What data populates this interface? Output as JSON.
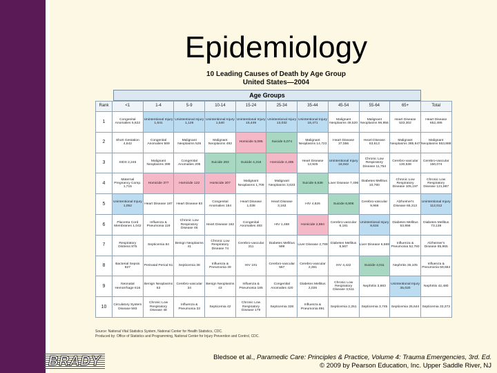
{
  "slide_title": "Epidemiology",
  "table_title_line1": "10 Leading Causes of Death by Age Group",
  "table_title_line2": "United States—2004",
  "age_groups_label": "Age Groups",
  "columns": [
    "Rank",
    "<1",
    "1-4",
    "5-9",
    "10-14",
    "15-24",
    "25-34",
    "35-44",
    "45-54",
    "55-64",
    "65+",
    "Total"
  ],
  "rows": [
    {
      "rank": "1",
      "cells": [
        {
          "text": "Congenital Anomalies 5,622",
          "color": ""
        },
        {
          "text": "Unintentional Injury 1,641",
          "color": "blue"
        },
        {
          "text": "Unintentional Injury 1,126",
          "color": "blue"
        },
        {
          "text": "Unintentional Injury 1,540",
          "color": "blue"
        },
        {
          "text": "Unintentional Injury 15,449",
          "color": "blue"
        },
        {
          "text": "Unintentional Injury 13,032",
          "color": "blue"
        },
        {
          "text": "Unintentional Injury 16,471",
          "color": "blue"
        },
        {
          "text": "Malignant Neoplasms 49,520",
          "color": ""
        },
        {
          "text": "Malignant Neoplasms 96,956",
          "color": ""
        },
        {
          "text": "Heart Disease 533,302",
          "color": ""
        },
        {
          "text": "Heart Disease 652,486",
          "color": ""
        }
      ]
    },
    {
      "rank": "2",
      "cells": [
        {
          "text": "Short Gestation 4,642",
          "color": ""
        },
        {
          "text": "Congenital Anomalies 569",
          "color": ""
        },
        {
          "text": "Malignant Neoplasms 526",
          "color": ""
        },
        {
          "text": "Malignant Neoplasms 493",
          "color": ""
        },
        {
          "text": "Homicide 5,085",
          "color": "pink"
        },
        {
          "text": "Suicide 5,074",
          "color": "green"
        },
        {
          "text": "Malignant Neoplasms 14,723",
          "color": ""
        },
        {
          "text": "Heart Disease 37,556",
          "color": ""
        },
        {
          "text": "Heart Disease 63,613",
          "color": ""
        },
        {
          "text": "Malignant Neoplasms 385,847",
          "color": ""
        },
        {
          "text": "Malignant Neoplasms 553,888",
          "color": ""
        }
      ]
    },
    {
      "rank": "3",
      "cells": [
        {
          "text": "SIDS 2,246",
          "color": ""
        },
        {
          "text": "Malignant Neoplasms 399",
          "color": ""
        },
        {
          "text": "Congenital Anomalies 205",
          "color": ""
        },
        {
          "text": "Suicide 283",
          "color": "green"
        },
        {
          "text": "Suicide 4,316",
          "color": "green"
        },
        {
          "text": "Homicide 4,495",
          "color": "pink"
        },
        {
          "text": "Heart Disease 12,925",
          "color": ""
        },
        {
          "text": "Unintentional Injury 16,942",
          "color": "blue"
        },
        {
          "text": "Chronic Low Respiratory Disease 11,754",
          "color": ""
        },
        {
          "text": "Cerebro-vascular 130,538",
          "color": ""
        },
        {
          "text": "Cerebro-vascular 150,074",
          "color": ""
        }
      ]
    },
    {
      "rank": "4",
      "cells": [
        {
          "text": "Maternal Pregnancy Comp. 1,715",
          "color": ""
        },
        {
          "text": "Homicide 377",
          "color": "pink"
        },
        {
          "text": "Homicide 122",
          "color": "pink"
        },
        {
          "text": "Homicide 207",
          "color": "pink"
        },
        {
          "text": "Malignant Neoplasms 1,709",
          "color": ""
        },
        {
          "text": "Malignant Neoplasms 3,633",
          "color": ""
        },
        {
          "text": "Suicide 6,638",
          "color": "green"
        },
        {
          "text": "Liver Disease 7,496",
          "color": ""
        },
        {
          "text": "Diabetes Mellitus 10,780",
          "color": ""
        },
        {
          "text": "Chronic Low Respiratory Disease 105,197",
          "color": ""
        },
        {
          "text": "Chronic Low Respiratory Disease 121,987",
          "color": ""
        }
      ]
    },
    {
      "rank": "5",
      "cells": [
        {
          "text": "Unintentional Injury 1,052",
          "color": "blue"
        },
        {
          "text": "Heart Disease 187",
          "color": ""
        },
        {
          "text": "Heart Disease 83",
          "color": ""
        },
        {
          "text": "Congenital Anomalies 184",
          "color": ""
        },
        {
          "text": "Heart Disease 1,038",
          "color": ""
        },
        {
          "text": "Heart Disease 3,163",
          "color": ""
        },
        {
          "text": "HIV 4,826",
          "color": ""
        },
        {
          "text": "Suicide 6,906",
          "color": "green"
        },
        {
          "text": "Cerebro-vascular 9,966",
          "color": ""
        },
        {
          "text": "Alzheimer's Disease 65,313",
          "color": ""
        },
        {
          "text": "Unintentional Injury 112,012",
          "color": "blue"
        }
      ]
    },
    {
      "rank": "6",
      "cells": [
        {
          "text": "Placenta Cord Membranes 1,042",
          "color": ""
        },
        {
          "text": "Influenza & Pneumonia 119",
          "color": ""
        },
        {
          "text": "Chronic Low Respiratory Disease 46",
          "color": ""
        },
        {
          "text": "Heart Disease 162",
          "color": ""
        },
        {
          "text": "Congenital Anomalies 483",
          "color": ""
        },
        {
          "text": "HIV 1,468",
          "color": ""
        },
        {
          "text": "Homicide 2,984",
          "color": "pink"
        },
        {
          "text": "Cerebro-vascular 6,181",
          "color": ""
        },
        {
          "text": "Unintentional Injury 8,634",
          "color": "blue"
        },
        {
          "text": "Diabetes Mellitus 53,956",
          "color": ""
        },
        {
          "text": "Diabetes Mellitus 73,138",
          "color": ""
        }
      ]
    },
    {
      "rank": "7",
      "cells": [
        {
          "text": "Respiratory Distress 875",
          "color": ""
        },
        {
          "text": "Septicemia 84",
          "color": ""
        },
        {
          "text": "Benign Neoplasms 41",
          "color": ""
        },
        {
          "text": "Chronic Low Respiratory Disease 74",
          "color": ""
        },
        {
          "text": "Cerebro-vascular 211",
          "color": ""
        },
        {
          "text": "Diabetes Mellitus 599",
          "color": ""
        },
        {
          "text": "Liver Disease 2,799",
          "color": ""
        },
        {
          "text": "Diabetes Mellitus 5,567",
          "color": ""
        },
        {
          "text": "Liver Disease 6,569",
          "color": ""
        },
        {
          "text": "Influenza & Pneumonia 52,760",
          "color": ""
        },
        {
          "text": "Alzheimer's Disease 65,965",
          "color": ""
        }
      ]
    },
    {
      "rank": "8",
      "cells": [
        {
          "text": "Bacterial Sepsis 827",
          "color": ""
        },
        {
          "text": "Perinatal Period 61",
          "color": ""
        },
        {
          "text": "Septicemia 38",
          "color": ""
        },
        {
          "text": "Influenza & Pneumonia 49",
          "color": ""
        },
        {
          "text": "HIV 191",
          "color": ""
        },
        {
          "text": "Cerebro-vascular 567",
          "color": ""
        },
        {
          "text": "Cerebro-vascular 2,361",
          "color": ""
        },
        {
          "text": "HIV 4,422",
          "color": ""
        },
        {
          "text": "Suicide 4,011",
          "color": "green"
        },
        {
          "text": "Nephritis 35,105",
          "color": ""
        },
        {
          "text": "Influenza & Pneumonia 59,664",
          "color": ""
        }
      ]
    },
    {
      "rank": "9",
      "cells": [
        {
          "text": "Neonatal Hemorrhage 616",
          "color": ""
        },
        {
          "text": "Benign Neoplasms 53",
          "color": ""
        },
        {
          "text": "Cerebro-vascular 34",
          "color": ""
        },
        {
          "text": "Benign Neoplasms 43",
          "color": ""
        },
        {
          "text": "Influenza & Pneumonia 185",
          "color": ""
        },
        {
          "text": "Congenital Anomalies 420",
          "color": ""
        },
        {
          "text": "Diabetes Mellitus 2,026",
          "color": ""
        },
        {
          "text": "Chronic Low Respiratory Disease 3,511",
          "color": ""
        },
        {
          "text": "Nephritis 3,983",
          "color": ""
        },
        {
          "text": "Unintentional Injury 35,020",
          "color": "blue"
        },
        {
          "text": "Nephritis 42,480",
          "color": ""
        }
      ]
    },
    {
      "rank": "10",
      "cells": [
        {
          "text": "Circulatory System Disease 593",
          "color": ""
        },
        {
          "text": "Chronic Low Respiratory Disease 48",
          "color": ""
        },
        {
          "text": "Influenza & Pneumonia 33",
          "color": ""
        },
        {
          "text": "Septicemia 42",
          "color": ""
        },
        {
          "text": "Chronic Low Respiratory Disease 179",
          "color": ""
        },
        {
          "text": "Septicemia 328",
          "color": ""
        },
        {
          "text": "Influenza & Pneumonia 891",
          "color": ""
        },
        {
          "text": "Septicemia 2,251",
          "color": ""
        },
        {
          "text": "Septicemia 3,745",
          "color": ""
        },
        {
          "text": "Septicemia 25,644",
          "color": ""
        },
        {
          "text": "Septicemia 33,373",
          "color": ""
        }
      ]
    }
  ],
  "source_line1": "Source: National Vital Statistics System, National Center for Health Statistics, CDC.",
  "source_line2": "Produced by: Office of Statistics and Programming, National Center for Injury Prevention and Control, CDC.",
  "brand_logo": "BRADY",
  "citation_prefix": "Bledsoe et al., ",
  "citation_title": "Paramedic Care: Principles & Practice, Volume 4: Trauma Emergencies, 3rd. Ed.",
  "citation_line2": "© 2009 by Pearson Education, Inc. Upper Saddle River, NJ",
  "colors": {
    "sidebar": "#5a1a55",
    "background": "#fdf8e3",
    "unintentional_injury": "#bcdcf2",
    "homicide": "#f4b8c7",
    "suicide": "#a9d8c2"
  }
}
